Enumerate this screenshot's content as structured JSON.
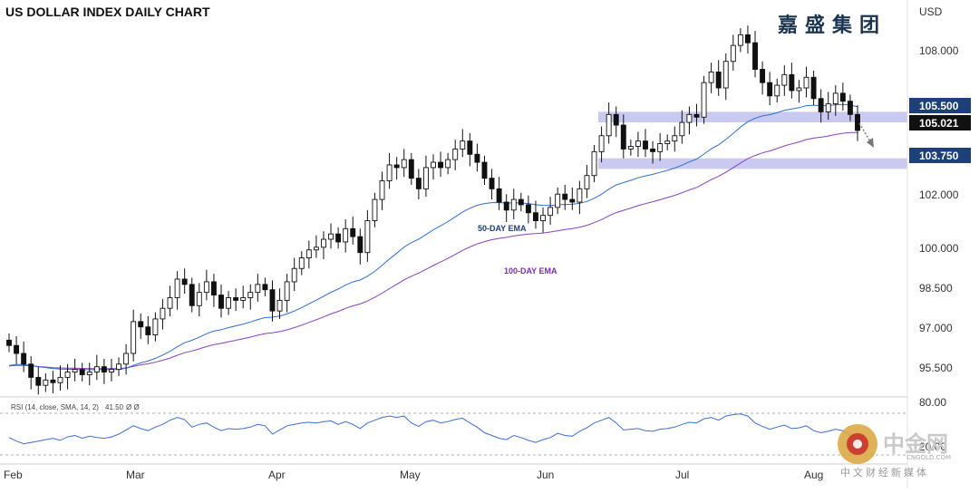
{
  "chart_data": {
    "type": "candlestick",
    "title": "US DOLLAR INDEX DAILY CHART",
    "currency": "USD",
    "y_ticks": [
      "108.000",
      "105.500",
      "105.021",
      "103.750",
      "102.000",
      "100.000",
      "98.500",
      "97.000",
      "95.500"
    ],
    "ylim": [
      94.5,
      109.5
    ],
    "x_ticks": [
      "Feb",
      "Mar",
      "Apr",
      "May",
      "Jun",
      "Jul",
      "Aug"
    ],
    "price_labels": {
      "resistance": {
        "text": "105.500",
        "value": 105.5
      },
      "last": {
        "text": "105.021",
        "value": 105.021
      },
      "support": {
        "text": "103.750",
        "value": 103.75
      }
    },
    "zones": [
      {
        "name": "resistance-zone",
        "from": 105.3,
        "to": 105.7
      },
      {
        "name": "support-zone",
        "from": 103.55,
        "to": 103.95
      }
    ],
    "series_labels": {
      "ema50": "50-DAY EMA",
      "ema100": "100-DAY EMA"
    },
    "colors": {
      "ema50": "#2f6fd0",
      "ema100": "#8a3fc2",
      "up_candle": "#ffffff",
      "down_candle": "#111111",
      "zone": "#b8b8ec",
      "label_box": "#1d3f7a",
      "last_box": "#111111"
    },
    "ohlc_closes": [
      96.9,
      96.6,
      96.2,
      95.7,
      95.4,
      95.6,
      95.5,
      95.7,
      95.9,
      96.0,
      95.8,
      95.9,
      96.1,
      95.9,
      96.0,
      96.2,
      96.6,
      97.8,
      97.6,
      97.3,
      97.9,
      98.3,
      98.7,
      99.4,
      99.2,
      98.4,
      98.9,
      99.3,
      98.8,
      98.3,
      98.7,
      98.6,
      98.7,
      98.9,
      99.2,
      99.0,
      98.2,
      98.6,
      99.3,
      99.8,
      100.2,
      100.5,
      100.6,
      100.9,
      101.1,
      100.8,
      101.3,
      101.0,
      100.4,
      101.6,
      102.4,
      103.1,
      103.7,
      103.6,
      103.9,
      103.2,
      102.8,
      103.6,
      103.8,
      103.6,
      103.9,
      104.3,
      104.6,
      104.1,
      103.8,
      103.2,
      102.8,
      102.3,
      102.0,
      102.4,
      102.2,
      101.9,
      101.6,
      101.8,
      102.1,
      102.6,
      102.4,
      102.3,
      102.8,
      103.3,
      104.2,
      104.8,
      105.6,
      105.2,
      104.3,
      104.4,
      104.6,
      104.3,
      104.2,
      104.5,
      104.6,
      104.8,
      105.3,
      105.6,
      105.5,
      106.8,
      107.2,
      106.6,
      107.6,
      108.2,
      108.6,
      108.3,
      107.3,
      106.8,
      106.3,
      106.7,
      107.1,
      106.5,
      106.6,
      107.0,
      106.2,
      105.7,
      106.0,
      106.4,
      106.1,
      105.6,
      105.0
    ]
  },
  "rsi": {
    "label": "RSI (14, close, SMA, 14, 2)",
    "value": "41.50",
    "extra": "Ø Ø",
    "ticks": [
      "80.00",
      "20.00"
    ],
    "values": [
      45,
      40,
      36,
      38,
      40,
      42,
      44,
      41,
      46,
      48,
      44,
      47,
      45,
      44,
      46,
      50,
      56,
      62,
      58,
      55,
      60,
      64,
      70,
      74,
      71,
      60,
      64,
      66,
      60,
      55,
      58,
      57,
      58,
      60,
      64,
      62,
      50,
      56,
      62,
      64,
      66,
      67,
      66,
      68,
      69,
      64,
      68,
      64,
      58,
      66,
      70,
      74,
      76,
      74,
      76,
      66,
      61,
      68,
      70,
      66,
      68,
      71,
      73,
      66,
      60,
      52,
      48,
      44,
      42,
      48,
      45,
      41,
      38,
      42,
      45,
      51,
      48,
      47,
      54,
      59,
      66,
      70,
      74,
      66,
      56,
      57,
      58,
      55,
      54,
      57,
      58,
      60,
      64,
      67,
      66,
      72,
      74,
      70,
      76,
      78,
      79,
      76,
      66,
      61,
      57,
      60,
      63,
      58,
      59,
      62,
      55,
      52,
      54,
      57,
      55,
      48,
      41
    ]
  },
  "brand_text": "嘉盛集团",
  "watermark": {
    "title": "中金网",
    "domain": "CNGOLD.COM",
    "subtitle": "中文财经新媒体"
  }
}
